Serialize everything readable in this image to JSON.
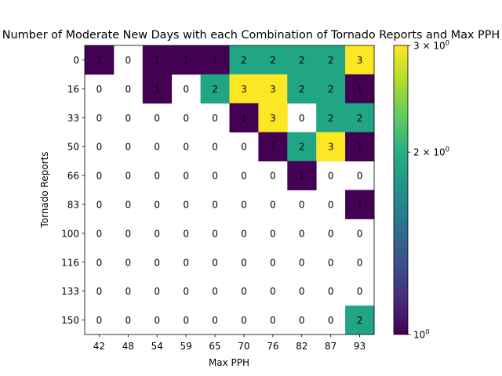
{
  "chart_data": {
    "type": "heatmap",
    "title": "Number of Moderate New Days with each Combination of Tornado Reports and Max PPH",
    "xlabel": "Max PPH",
    "ylabel": "Tornado Reports",
    "x_categories": [
      "42",
      "48",
      "54",
      "59",
      "65",
      "70",
      "76",
      "82",
      "87",
      "93"
    ],
    "y_categories": [
      "0",
      "16",
      "33",
      "50",
      "66",
      "83",
      "100",
      "116",
      "133",
      "150"
    ],
    "values": [
      [
        1,
        0,
        1,
        1,
        1,
        2,
        2,
        2,
        2,
        3
      ],
      [
        0,
        0,
        1,
        0,
        2,
        3,
        3,
        2,
        2,
        1
      ],
      [
        0,
        0,
        0,
        0,
        0,
        1,
        3,
        0,
        2,
        2
      ],
      [
        0,
        0,
        0,
        0,
        0,
        0,
        1,
        2,
        3,
        1
      ],
      [
        0,
        0,
        0,
        0,
        0,
        0,
        0,
        1,
        0,
        0
      ],
      [
        0,
        0,
        0,
        0,
        0,
        0,
        0,
        0,
        0,
        1
      ],
      [
        0,
        0,
        0,
        0,
        0,
        0,
        0,
        0,
        0,
        0
      ],
      [
        0,
        0,
        0,
        0,
        0,
        0,
        0,
        0,
        0,
        0
      ],
      [
        0,
        0,
        0,
        0,
        0,
        0,
        0,
        0,
        0,
        0
      ],
      [
        0,
        0,
        0,
        0,
        0,
        0,
        0,
        0,
        0,
        2
      ]
    ],
    "color_scale": "log",
    "colormap": "viridis",
    "zero_color": "#ffffff",
    "colors": {
      "1": "#440154",
      "2": "#21a685",
      "3": "#fde725"
    },
    "colorbar": {
      "range": [
        1,
        3
      ],
      "ticks": [
        {
          "value": 1,
          "base": "10",
          "exp": "0"
        },
        {
          "value": 2,
          "base": "2 × 10",
          "exp": "0"
        },
        {
          "value": 3,
          "base": "3 × 10",
          "exp": "0"
        }
      ]
    }
  }
}
